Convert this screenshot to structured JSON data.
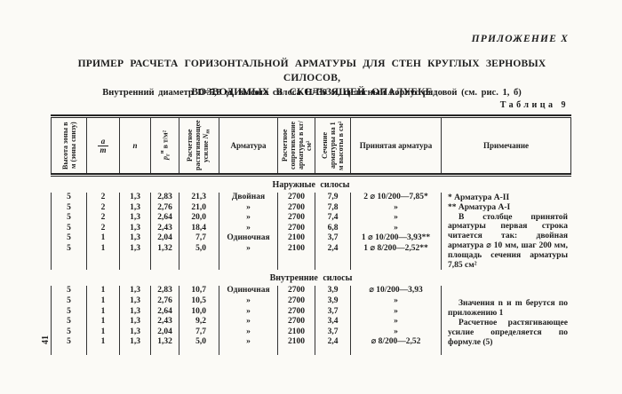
{
  "page": {
    "appendix": "ПРИЛОЖЕНИЕ X",
    "title_line1": "ПРИМЕР РАСЧЕТА ГОРИЗОНТАЛЬНОЙ АРМАТУРЫ ДЛЯ СТЕН КРУГЛЫХ ЗЕРНОВЫХ СИЛОСОВ,",
    "title_line2": "ВОЗВОДИМЫХ В СКОЛЬЗЯЩЕЙ ОПАЛУБКЕ",
    "subtitle": "Внутренний диаметр D=5,8 м, высота силоса H=30 м, силосный корпус рядовой (см. рис. 1, б)",
    "table_label": "Таблица 9",
    "page_number": "41"
  },
  "table": {
    "headers": {
      "height_zone": "Высота зоны в м (зоны снизу)",
      "a_over_m": {
        "num": "a",
        "den": "m"
      },
      "n": "n",
      "pressure": {
        "base": "p",
        "sub": "г",
        "sup": "н",
        "rest": " в т/м²"
      },
      "tension": {
        "text": "Расчетное растягивающее усилие ",
        "base": "N",
        "sub": "m"
      },
      "armature": "Арматура",
      "resistance": "Расчетное сопротивление арматуры в кг/см²",
      "section_area": "Сечение арматуры на 1 м высоты в см²",
      "adopted": "Принятая арматура",
      "note": "Примечание"
    },
    "sections": [
      {
        "title": "Наружные силосы",
        "rows": [
          {
            "h": "5",
            "a": "2",
            "n": "1,3",
            "p": "2,83",
            "N": "21,3",
            "arm": "Двойная",
            "R": "2700",
            "A": "7,9",
            "ad": "2 ⌀ 10/200—7,85*"
          },
          {
            "h": "5",
            "a": "2",
            "n": "1,3",
            "p": "2,76",
            "N": "21,0",
            "arm": "»",
            "R": "2700",
            "A": "7,8",
            "ad": "»"
          },
          {
            "h": "5",
            "a": "2",
            "n": "1,3",
            "p": "2,64",
            "N": "20,0",
            "arm": "»",
            "R": "2700",
            "A": "7,4",
            "ad": "»"
          },
          {
            "h": "5",
            "a": "2",
            "n": "1,3",
            "p": "2,43",
            "N": "18,4",
            "arm": "»",
            "R": "2700",
            "A": "6,8",
            "ad": "»"
          },
          {
            "h": "5",
            "a": "1",
            "n": "1,3",
            "p": "2,04",
            "N": "7,7",
            "arm": "Одиночная",
            "R": "2100",
            "A": "3,7",
            "ad": "1 ⌀ 10/200—3,93**"
          },
          {
            "h": "5",
            "a": "1",
            "n": "1,3",
            "p": "1,32",
            "N": "5,0",
            "arm": "»",
            "R": "2100",
            "A": "2,4",
            "ad": "1 ⌀ 8/200—2,52**"
          }
        ],
        "note_line1": "* Арматура А-II",
        "note_line2": "** Арматура А-I",
        "note_para": "В столбце принятой арматуры первая строка читается так: двойная арматура ⌀ 10 мм, шаг 200 мм, площадь сечения арматуры 7,85 см²"
      },
      {
        "title": "Внутренние силосы",
        "rows": [
          {
            "h": "5",
            "a": "1",
            "n": "1,3",
            "p": "2,83",
            "N": "10,7",
            "arm": "Одиночная",
            "R": "2700",
            "A": "3,9",
            "ad": "⌀ 10/200—3,93"
          },
          {
            "h": "5",
            "a": "1",
            "n": "1,3",
            "p": "2,76",
            "N": "10,5",
            "arm": "»",
            "R": "2700",
            "A": "3,9",
            "ad": "»"
          },
          {
            "h": "5",
            "a": "1",
            "n": "1,3",
            "p": "2,64",
            "N": "10,0",
            "arm": "»",
            "R": "2700",
            "A": "3,7",
            "ad": "»"
          },
          {
            "h": "5",
            "a": "1",
            "n": "1,3",
            "p": "2,43",
            "N": "9,2",
            "arm": "»",
            "R": "2700",
            "A": "3,4",
            "ad": "»"
          },
          {
            "h": "5",
            "a": "1",
            "n": "1,3",
            "p": "2,04",
            "N": "7,7",
            "arm": "»",
            "R": "2100",
            "A": "3,7",
            "ad": "»"
          },
          {
            "h": "5",
            "a": "1",
            "n": "1,3",
            "p": "1,32",
            "N": "5,0",
            "arm": "»",
            "R": "2100",
            "A": "2,4",
            "ad": "⌀ 8/200—2,52"
          }
        ],
        "note_para1": "Значения n и m берутся по приложению 1",
        "note_para2": "Расчетное растягивающее усилие определяется по формуле (5)"
      }
    ]
  }
}
